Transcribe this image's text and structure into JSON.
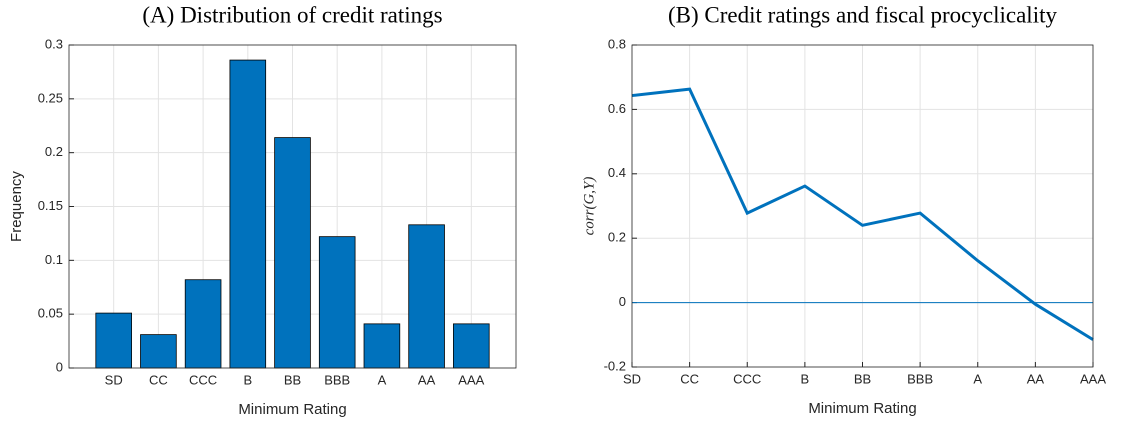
{
  "chart_data": [
    {
      "type": "bar",
      "title": "(A) Distribution of credit ratings",
      "xlabel": "Minimum Rating",
      "ylabel": "Frequency",
      "categories": [
        "SD",
        "CC",
        "CCC",
        "B",
        "BB",
        "BBB",
        "A",
        "AA",
        "AAA"
      ],
      "values": [
        0.051,
        0.031,
        0.082,
        0.286,
        0.214,
        0.122,
        0.041,
        0.133,
        0.041
      ],
      "color": "#0072bd",
      "ylim": [
        0,
        0.3
      ],
      "yticks": [
        0,
        0.05,
        0.1,
        0.15,
        0.2,
        0.25,
        0.3
      ],
      "grid": true
    },
    {
      "type": "line",
      "title": "(B) Credit ratings and fiscal procyclicality",
      "xlabel": "Minimum Rating",
      "ylabel": "corr(G,Y)",
      "categories": [
        "SD",
        "CC",
        "CCC",
        "B",
        "BB",
        "BBB",
        "A",
        "AA",
        "AAA"
      ],
      "values": [
        0.643,
        0.663,
        0.278,
        0.362,
        0.24,
        0.278,
        0.13,
        -0.005,
        -0.115
      ],
      "color": "#0072bd",
      "ylim": [
        -0.2,
        0.8
      ],
      "yticks": [
        -0.2,
        0,
        0.2,
        0.4,
        0.6,
        0.8
      ],
      "grid": true
    }
  ]
}
